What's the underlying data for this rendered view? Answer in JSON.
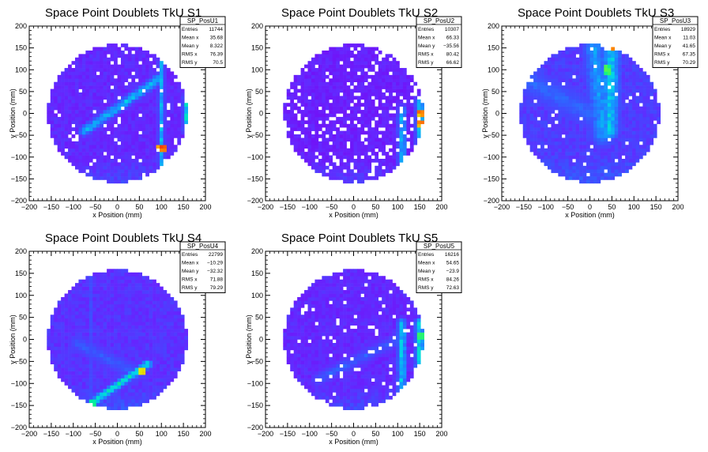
{
  "chart_data": [
    {
      "type": "heatmap",
      "title": "Space Point Doublets TkU S1",
      "xlabel": "x Position (mm)",
      "ylabel": "y Position (mm)",
      "xlim": [
        -200,
        200
      ],
      "ylim": [
        -200,
        200
      ],
      "x_ticks": [
        "−200",
        "−150",
        "−100",
        "−50",
        "0",
        "50",
        "100",
        "150",
        "200"
      ],
      "y_ticks": [
        "−200",
        "−150",
        "−100",
        "−50",
        "0",
        "50",
        "100",
        "150",
        "200"
      ],
      "stats": {
        "name": "SP_PosU1",
        "rows": [
          {
            "label": "Entries",
            "value": "11744"
          },
          {
            "label": "Mean x",
            "value": "35.68"
          },
          {
            "label": "Mean y",
            "value": "8.322"
          },
          {
            "label": "RMS x",
            "value": "76.39"
          },
          {
            "label": "RMS y",
            "value": "70.5"
          }
        ]
      },
      "disk_radius": 158,
      "base_level": 0.1,
      "features": [
        {
          "kind": "band",
          "from": [
            -75,
            -40
          ],
          "to": [
            95,
            80
          ],
          "width": 16,
          "level": 0.35
        },
        {
          "kind": "band",
          "from": [
            100,
            -120
          ],
          "to": [
            100,
            120
          ],
          "width": 10,
          "level": 0.32
        },
        {
          "kind": "band",
          "from": [
            158,
            -40
          ],
          "to": [
            158,
            40
          ],
          "width": 12,
          "level": 0.45
        }
      ],
      "hot_cells": [
        {
          "x": 100,
          "y": -80,
          "level": 0.95
        }
      ],
      "empty_fraction": 0.05
    },
    {
      "type": "heatmap",
      "title": "Space Point Doublets TkU S2",
      "xlabel": "x Position (mm)",
      "ylabel": "y Position (mm)",
      "xlim": [
        -200,
        200
      ],
      "ylim": [
        -200,
        200
      ],
      "x_ticks": [
        "−200",
        "−150",
        "−100",
        "−50",
        "0",
        "50",
        "100",
        "150",
        "200"
      ],
      "y_ticks": [
        "−200",
        "−150",
        "−100",
        "−50",
        "0",
        "50",
        "100",
        "150",
        "200"
      ],
      "stats": {
        "name": "SP_PosU2",
        "rows": [
          {
            "label": "Entries",
            "value": "10307"
          },
          {
            "label": "Mean x",
            "value": "66.33"
          },
          {
            "label": "Mean y",
            "value": "−35.56"
          },
          {
            "label": "RMS x",
            "value": "80.42"
          },
          {
            "label": "RMS y",
            "value": "66.62"
          }
        ]
      },
      "disk_radius": 158,
      "base_level": 0.08,
      "features": [
        {
          "kind": "band",
          "from": [
            110,
            -120
          ],
          "to": [
            110,
            10
          ],
          "width": 14,
          "level": 0.35
        },
        {
          "kind": "band",
          "from": [
            150,
            -80
          ],
          "to": [
            150,
            30
          ],
          "width": 14,
          "level": 0.42
        }
      ],
      "hot_cells": [
        {
          "x": 155,
          "y": 0,
          "level": 0.92
        },
        {
          "x": 150,
          "y": -25,
          "level": 0.9
        }
      ],
      "empty_fraction": 0.16
    },
    {
      "type": "heatmap",
      "title": "Space Point Doublets TkU S3",
      "xlabel": "x Position (mm)",
      "ylabel": "y Position (mm)",
      "xlim": [
        -200,
        200
      ],
      "ylim": [
        -200,
        200
      ],
      "x_ticks": [
        "−200",
        "−150",
        "−100",
        "−50",
        "0",
        "50",
        "100",
        "150",
        "200"
      ],
      "y_ticks": [
        "−200",
        "−150",
        "−100",
        "−50",
        "0",
        "50",
        "100",
        "150",
        "200"
      ],
      "stats": {
        "name": "SP_PosU3",
        "rows": [
          {
            "label": "Entries",
            "value": "18929"
          },
          {
            "label": "Mean x",
            "value": "11.03"
          },
          {
            "label": "Mean y",
            "value": "41.65"
          },
          {
            "label": "RMS x",
            "value": "67.35"
          },
          {
            "label": "RMS y",
            "value": "70.29"
          }
        ]
      },
      "disk_radius": 158,
      "base_level": 0.14,
      "features": [
        {
          "kind": "band",
          "from": [
            10,
            150
          ],
          "to": [
            30,
            -50
          ],
          "width": 30,
          "level": 0.3
        },
        {
          "kind": "band",
          "from": [
            50,
            150
          ],
          "to": [
            45,
            -40
          ],
          "width": 25,
          "level": 0.38
        },
        {
          "kind": "band",
          "from": [
            -150,
            80
          ],
          "to": [
            0,
            0
          ],
          "width": 35,
          "level": 0.22
        }
      ],
      "hot_cells": [
        {
          "x": 45,
          "y": 150,
          "level": 0.95
        },
        {
          "x": 40,
          "y": 100,
          "level": 0.6
        }
      ],
      "empty_fraction": 0.04
    },
    {
      "type": "heatmap",
      "title": "Space Point Doublets TkU S4",
      "xlabel": "x Position (mm)",
      "ylabel": "y Position (mm)",
      "xlim": [
        -200,
        200
      ],
      "ylim": [
        -200,
        200
      ],
      "x_ticks": [
        "−200",
        "−150",
        "−100",
        "−50",
        "0",
        "50",
        "100",
        "150",
        "200"
      ],
      "y_ticks": [
        "−200",
        "−150",
        "−100",
        "−50",
        "0",
        "50",
        "100",
        "150",
        "200"
      ],
      "stats": {
        "name": "SP_PosU4",
        "rows": [
          {
            "label": "Entries",
            "value": "22799"
          },
          {
            "label": "Mean x",
            "value": "−10.29"
          },
          {
            "label": "Mean y",
            "value": "−32.32"
          },
          {
            "label": "RMS x",
            "value": "71.88"
          },
          {
            "label": "RMS y",
            "value": "79.29"
          }
        ]
      },
      "disk_radius": 158,
      "base_level": 0.12,
      "features": [
        {
          "kind": "band",
          "from": [
            -60,
            -145
          ],
          "to": [
            70,
            -55
          ],
          "width": 12,
          "level": 0.45
        },
        {
          "kind": "band",
          "from": [
            -90,
            -10
          ],
          "to": [
            40,
            -75
          ],
          "width": 22,
          "level": 0.2
        },
        {
          "kind": "band",
          "from": [
            -60,
            150
          ],
          "to": [
            -60,
            -150
          ],
          "width": 8,
          "level": 0.17
        }
      ],
      "hot_cells": [
        {
          "x": 55,
          "y": -70,
          "level": 0.85
        },
        {
          "x": -55,
          "y": -142,
          "level": 0.55
        }
      ],
      "empty_fraction": 0.0
    },
    {
      "type": "heatmap",
      "title": "Space Point Doublets TkU S5",
      "xlabel": "x Position (mm)",
      "ylabel": "y Position (mm)",
      "xlim": [
        -200,
        200
      ],
      "ylim": [
        -200,
        200
      ],
      "x_ticks": [
        "−200",
        "−150",
        "−100",
        "−50",
        "0",
        "50",
        "100",
        "150",
        "200"
      ],
      "y_ticks": [
        "−200",
        "−150",
        "−100",
        "−50",
        "0",
        "50",
        "100",
        "150",
        "200"
      ],
      "stats": {
        "name": "SP_PosU5",
        "rows": [
          {
            "label": "Entries",
            "value": "16216"
          },
          {
            "label": "Mean x",
            "value": "54.65"
          },
          {
            "label": "Mean y",
            "value": "−23.9"
          },
          {
            "label": "RMS x",
            "value": "84.26"
          },
          {
            "label": "RMS y",
            "value": "72.63"
          }
        ]
      },
      "disk_radius": 158,
      "base_level": 0.1,
      "features": [
        {
          "kind": "band",
          "from": [
            110,
            -120
          ],
          "to": [
            110,
            40
          ],
          "width": 14,
          "level": 0.38
        },
        {
          "kind": "band",
          "from": [
            150,
            -80
          ],
          "to": [
            150,
            40
          ],
          "width": 14,
          "level": 0.42
        },
        {
          "kind": "band",
          "from": [
            -80,
            -90
          ],
          "to": [
            100,
            0
          ],
          "width": 20,
          "level": 0.2
        }
      ],
      "hot_cells": [
        {
          "x": 155,
          "y": 10,
          "level": 0.6
        }
      ],
      "empty_fraction": 0.06
    }
  ]
}
